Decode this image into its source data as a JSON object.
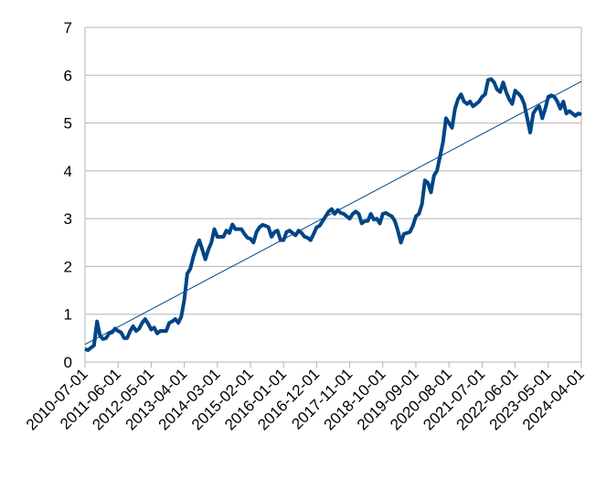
{
  "chart_data": {
    "type": "line",
    "categories": [
      "2010-07-01",
      null,
      null,
      null,
      null,
      null,
      null,
      null,
      null,
      null,
      null,
      "2011-06-01",
      null,
      null,
      null,
      null,
      null,
      null,
      null,
      null,
      null,
      null,
      "2012-05-01",
      null,
      null,
      null,
      null,
      null,
      null,
      null,
      null,
      null,
      null,
      "2013-04-01",
      null,
      null,
      null,
      null,
      null,
      null,
      null,
      null,
      null,
      null,
      "2014-03-01",
      null,
      null,
      null,
      null,
      null,
      null,
      null,
      null,
      null,
      null,
      "2015-02-01",
      null,
      null,
      null,
      null,
      null,
      null,
      null,
      null,
      null,
      null,
      "2016-01-01",
      null,
      null,
      null,
      null,
      null,
      null,
      null,
      null,
      null,
      null,
      "2016-12-01",
      null,
      null,
      null,
      null,
      null,
      null,
      null,
      null,
      null,
      null,
      "2017-11-01",
      null,
      null,
      null,
      null,
      null,
      null,
      null,
      null,
      null,
      null,
      "2018-10-01",
      null,
      null,
      null,
      null,
      null,
      null,
      null,
      null,
      null,
      null,
      "2019-09-01",
      null,
      null,
      null,
      null,
      null,
      null,
      null,
      null,
      null,
      null,
      "2020-08-01",
      null,
      null,
      null,
      null,
      null,
      null,
      null,
      null,
      null,
      null,
      "2021-07-01",
      null,
      null,
      null,
      null,
      null,
      null,
      null,
      null,
      null,
      null,
      "2022-06-01",
      null,
      null,
      null,
      null,
      null,
      null,
      null,
      null,
      null,
      null,
      "2023-05-01",
      null,
      null,
      null,
      null,
      null,
      null,
      null,
      null,
      null,
      null,
      "2024-04-01"
    ],
    "series": [
      {
        "color": "#004586",
        "values": [
          0.27,
          0.25,
          0.3,
          0.35,
          0.85,
          0.55,
          0.48,
          0.5,
          0.6,
          0.62,
          0.7,
          0.65,
          0.62,
          0.5,
          0.5,
          0.65,
          0.75,
          0.65,
          0.7,
          0.82,
          0.9,
          0.8,
          0.68,
          0.72,
          0.6,
          0.65,
          0.65,
          0.65,
          0.82,
          0.85,
          0.9,
          0.82,
          0.95,
          1.3,
          1.85,
          1.95,
          2.2,
          2.4,
          2.55,
          2.35,
          2.15,
          2.35,
          2.5,
          2.78,
          2.62,
          2.62,
          2.62,
          2.75,
          2.7,
          2.88,
          2.78,
          2.78,
          2.78,
          2.68,
          2.6,
          2.58,
          2.5,
          2.72,
          2.82,
          2.87,
          2.85,
          2.82,
          2.62,
          2.72,
          2.75,
          2.55,
          2.55,
          2.72,
          2.75,
          2.7,
          2.65,
          2.75,
          2.7,
          2.62,
          2.6,
          2.55,
          2.68,
          2.82,
          2.85,
          2.95,
          3.05,
          3.15,
          3.2,
          3.1,
          3.18,
          3.12,
          3.1,
          3.05,
          3.0,
          3.1,
          3.15,
          3.1,
          2.9,
          2.95,
          2.95,
          3.1,
          2.98,
          3.0,
          2.9,
          3.1,
          3.12,
          3.08,
          3.05,
          2.95,
          2.75,
          2.5,
          2.68,
          2.7,
          2.72,
          2.85,
          3.05,
          3.1,
          3.3,
          3.8,
          3.75,
          3.55,
          3.9,
          4.0,
          4.3,
          4.6,
          5.1,
          5.0,
          4.9,
          5.3,
          5.5,
          5.6,
          5.45,
          5.4,
          5.45,
          5.35,
          5.4,
          5.45,
          5.55,
          5.6,
          5.9,
          5.92,
          5.85,
          5.7,
          5.65,
          5.85,
          5.65,
          5.5,
          5.4,
          5.68,
          5.62,
          5.55,
          5.4,
          5.1,
          4.8,
          5.2,
          5.3,
          5.35,
          5.1,
          5.3,
          5.55,
          5.58,
          5.55,
          5.45,
          5.3,
          5.45,
          5.2,
          5.25,
          5.2,
          5.15,
          5.2,
          5.18
        ]
      }
    ],
    "trendline": {
      "color": "#004586",
      "values": [
        0.37,
        5.87
      ]
    },
    "ylim": [
      0,
      7
    ],
    "yticks": [
      0,
      1,
      2,
      3,
      4,
      5,
      6,
      7
    ],
    "grid": true
  }
}
